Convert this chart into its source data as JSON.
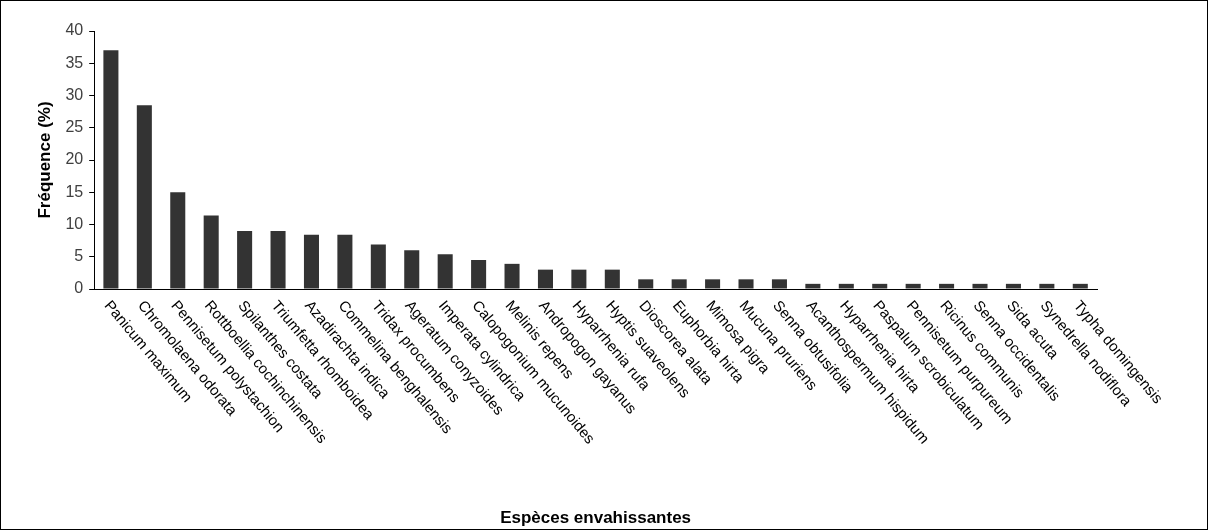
{
  "chart_data": {
    "type": "bar",
    "xlabel": "Espèces envahissantes",
    "ylabel": "Fréquence (%)",
    "categories": [
      "Panicum maximum",
      "Chromolaena odorata",
      "Pennisetum polystachion",
      "Rottboellia cochinchinensis",
      "Spilanthes costata",
      "Triumfetta rhomboidea",
      "Azadirachta indica",
      "Commelina benghalensis",
      "Tridax procumbens",
      "Ageratum conyzoides",
      "Imperata cylindrica",
      "Calopogonium mucunoides",
      "Melinis repens",
      "Andropogon gayanus",
      "Hyparrhenia rufa",
      "Hyptis suaveolens",
      "Dioscorea alata",
      "Euphorbia hirta",
      "Mimosa pigra",
      "Mucuna pruriens",
      "Senna obtusifolia",
      "Acanthospermum hispidum",
      "Hyparrhenia hirta",
      "Paspalum scrobiculatum",
      "Pennisetum purpureum",
      "Ricinus communis",
      "Senna occidentalis",
      "Sida acuta",
      "Synedrella nodiflora",
      "Typha domingensis"
    ],
    "values": [
      37,
      28.5,
      15,
      11.4,
      9,
      9,
      8.4,
      8.4,
      6.9,
      6,
      5.4,
      4.5,
      3.9,
      3,
      3,
      3,
      1.5,
      1.5,
      1.5,
      1.5,
      1.5,
      0.8,
      0.8,
      0.8,
      0.8,
      0.8,
      0.8,
      0.8,
      0.8,
      0.8
    ],
    "color": "#333333",
    "ylim": [
      0,
      40
    ],
    "yticks": [
      0,
      5,
      10,
      15,
      20,
      25,
      30,
      35,
      40
    ],
    "grid": false,
    "legend": false
  }
}
